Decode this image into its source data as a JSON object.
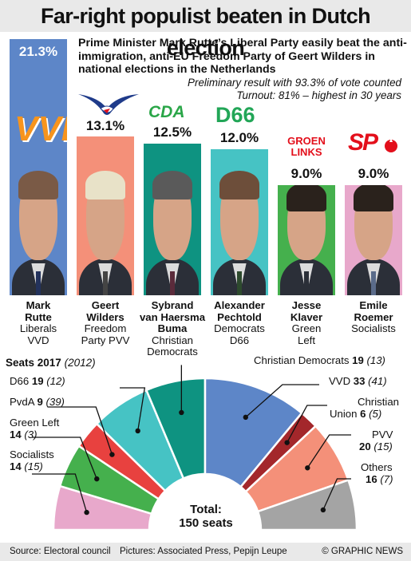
{
  "title": "Far-right populist beaten in Dutch election",
  "intro": "Prime Minister Mark Rutte’s Liberal Party easily beat the anti-immigration, anti-EU Freedom Party of Geert Wilders in national elections in the Netherlands",
  "note_result": "Preliminary result with 93.3% of vote counted",
  "note_turnout": "Turnout: 81% – highest in 30 years",
  "logos": {
    "vvd": "VVD",
    "cda": "CDA",
    "d66": "D66",
    "groen1": "GROEN",
    "groen2": "LINKS",
    "sp": "SP"
  },
  "colors": {
    "vvd": "#5d86c8",
    "pvv": "#f49079",
    "cda": "#0e9381",
    "d66": "#46c3c4",
    "gl": "#45b04d",
    "sp": "#e8a8cb",
    "pvda": "#e8413f",
    "cu": "#a3272b",
    "others": "#a4a4a4"
  },
  "chart_data": [
    {
      "type": "bar",
      "categories": [
        "VVD",
        "PVV",
        "CDA",
        "D66",
        "GL",
        "SP"
      ],
      "series": [
        {
          "values": [
            21.3,
            13.1,
            12.5,
            12.0,
            9.0,
            9.0
          ]
        }
      ],
      "value_labels": [
        "21.3%",
        "13.1%",
        "12.5%",
        "12.0%",
        "9.0%",
        "9.0%"
      ],
      "candidates": [
        {
          "name1": "Mark",
          "name2": "Rutte",
          "party1": "Liberals",
          "party2": "VVD"
        },
        {
          "name1": "Geert",
          "name2": "Wilders",
          "party1": "Freedom",
          "party2": "Party PVV"
        },
        {
          "name1": "Sybrand",
          "name2": "van Haersma",
          "name3": "Buma",
          "party1": "Christian",
          "party2": "Democrats"
        },
        {
          "name1": "Alexander",
          "name2": "Pechtold",
          "party1": "Democrats",
          "party2": "D66"
        },
        {
          "name1": "Jesse",
          "name2": "Klaver",
          "party1": "Green",
          "party2": "Left"
        },
        {
          "name1": "Emile",
          "name2": "Roemer",
          "party1": "Socialists"
        }
      ]
    },
    {
      "type": "pie",
      "title": "Seats 2017",
      "title_prev": "(2012)",
      "total_label_1": "Total:",
      "total_label_2": "150 seats",
      "slices": [
        {
          "label": "Socialists",
          "seats": 14,
          "prev": "(15)"
        },
        {
          "label": "Green Left",
          "seats": 14,
          "prev": "(3)"
        },
        {
          "label": "PvdA",
          "seats": 9,
          "prev": "(39)"
        },
        {
          "label": "D66",
          "seats": 19,
          "prev": "(12)"
        },
        {
          "label": "Christian Democrats",
          "seats": 19,
          "prev": "(13)"
        },
        {
          "label": "VVD",
          "seats": 33,
          "prev": "(41)"
        },
        {
          "label": "Christian Union",
          "seats": 6,
          "prev": "(5)"
        },
        {
          "label": "PVV",
          "seats": 20,
          "prev": "(15)"
        },
        {
          "label": "Others",
          "seats": 16,
          "prev": "(7)"
        }
      ]
    }
  ],
  "footer": {
    "source": "Source: Electoral council",
    "pictures": "Pictures: Associated Press, Pepijn Leupe",
    "credit": "© GRAPHIC NEWS"
  }
}
